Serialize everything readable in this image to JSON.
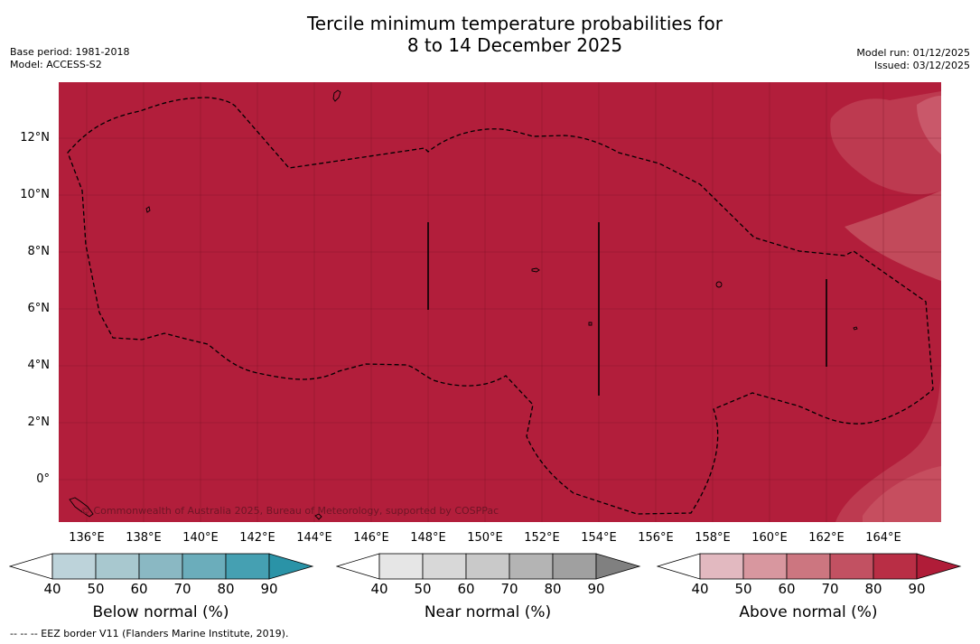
{
  "title_line1": "Tercile minimum temperature probabilities for",
  "title_line2": "8 to 14 December 2025",
  "base_period": "Base period: 1981-2018",
  "model": "Model: ACCESS-S2",
  "model_run": "Model run: 01/12/2025",
  "issued": "Issued: 03/12/2025",
  "lat_labels": [
    "12°N",
    "10°N",
    "8°N",
    "6°N",
    "4°N",
    "2°N",
    "0°"
  ],
  "lon_labels": [
    "136°E",
    "138°E",
    "140°E",
    "142°E",
    "144°E",
    "146°E",
    "148°E",
    "150°E",
    "152°E",
    "154°E",
    "156°E",
    "158°E",
    "160°E",
    "162°E",
    "164°E"
  ],
  "copyright": "© Commonwealth of Australia 2025, Bureau of Meteorology, supported by COSPPac",
  "colorbars": [
    {
      "label": "Below normal (%)",
      "ticks": [
        "40",
        "50",
        "60",
        "70",
        "80",
        "90"
      ],
      "colors": [
        "#bdd3da",
        "#a8c8cf",
        "#8ab8c3",
        "#6badbb",
        "#45a0b2",
        "#2a93a7"
      ]
    },
    {
      "label": "Near normal (%)",
      "ticks": [
        "40",
        "50",
        "60",
        "70",
        "80",
        "90"
      ],
      "colors": [
        "#e6e6e6",
        "#d8d8d8",
        "#c9c9c9",
        "#b4b4b4",
        "#a0a0a0",
        "#808080"
      ]
    },
    {
      "label": "Above normal (%)",
      "ticks": [
        "40",
        "50",
        "60",
        "70",
        "80",
        "90"
      ],
      "colors": [
        "#e2b9c0",
        "#d8979f",
        "#cc7680",
        "#c25162",
        "#b92e45",
        "#b01c38"
      ]
    }
  ],
  "footnote": "--  --  -- EEZ border V11 (Flanders Marine Institute, 2019).",
  "colors": {
    "ocean_main": "#b21e3b",
    "ocean_light": "#bf3a50",
    "ocean_lighter": "#c84f5f"
  }
}
